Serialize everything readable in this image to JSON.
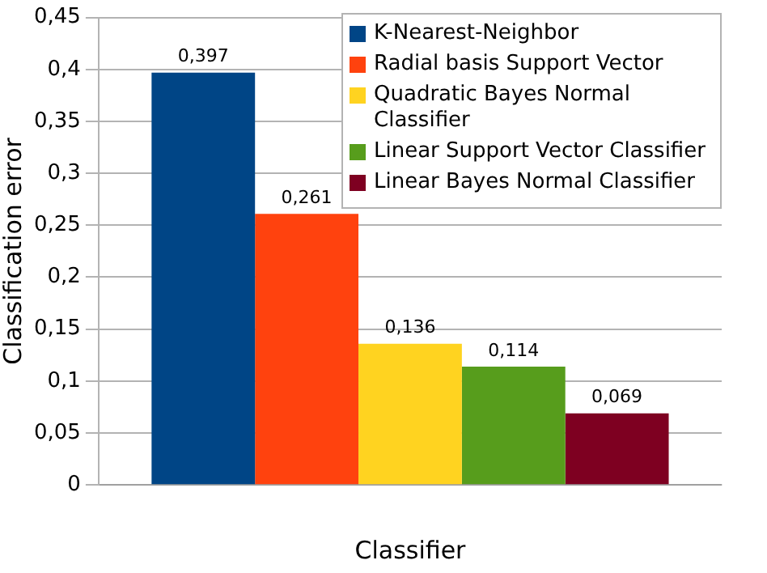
{
  "chart_data": {
    "type": "bar",
    "xlabel": "Classifier",
    "ylabel": "Classification error",
    "categories": [
      null
    ],
    "series": [
      {
        "name": "K-Nearest-Neighbor",
        "color": "#004586",
        "values": [
          0.397
        ],
        "value_labels": [
          "0,397"
        ]
      },
      {
        "name": "Radial basis Support Vector",
        "color": "#ff420e",
        "values": [
          0.261
        ],
        "value_labels": [
          "0,261"
        ]
      },
      {
        "name": "Quadratic Bayes Normal Classifier",
        "color": "#ffd320",
        "values": [
          0.136
        ],
        "value_labels": [
          "0,136"
        ]
      },
      {
        "name": "Linear Support Vector Classifier",
        "color": "#579d1c",
        "values": [
          0.114
        ],
        "value_labels": [
          "0,114"
        ]
      },
      {
        "name": "Linear Bayes Normal Classifier",
        "color": "#7e0021",
        "values": [
          0.069
        ],
        "value_labels": [
          "0,069"
        ]
      }
    ],
    "ylim": [
      0,
      0.45
    ],
    "yticks": [
      {
        "value": 0,
        "label": "0"
      },
      {
        "value": 0.05,
        "label": "0,05"
      },
      {
        "value": 0.1,
        "label": "0,1"
      },
      {
        "value": 0.15,
        "label": "0,15"
      },
      {
        "value": 0.2,
        "label": "0,2"
      },
      {
        "value": 0.25,
        "label": "0,25"
      },
      {
        "value": 0.3,
        "label": "0,3"
      },
      {
        "value": 0.35,
        "label": "0,35"
      },
      {
        "value": 0.4,
        "label": "0,4"
      },
      {
        "value": 0.45,
        "label": "0,45"
      }
    ],
    "grid": "y",
    "legend": "top right"
  }
}
